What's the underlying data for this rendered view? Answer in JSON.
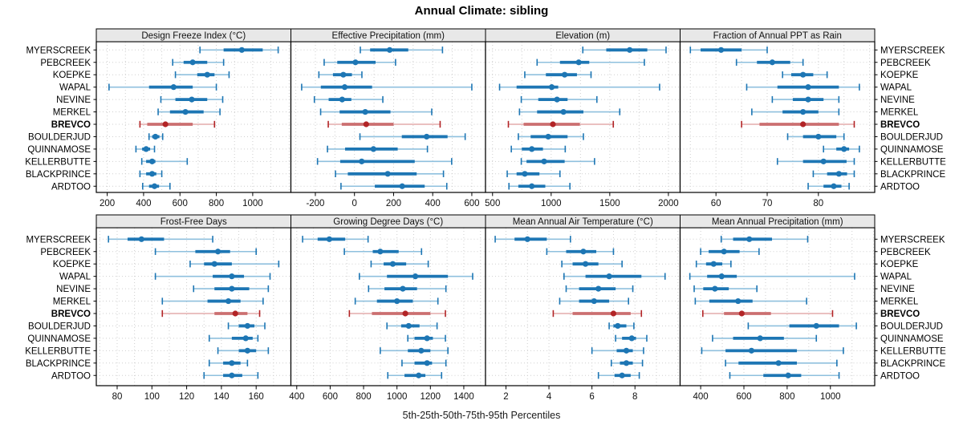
{
  "title": "Annual Climate: sibling",
  "caption": "5th-25th-50th-75th-95th Percentiles",
  "sites": [
    "MYERSCREEK",
    "PEBCREEK",
    "KOEPKE",
    "WAPAL",
    "NEVINE",
    "MERKEL",
    "BREVCO",
    "BOULDERJUD",
    "QUINNAMOSE",
    "KELLERBUTTE",
    "BLACKPRINCE",
    "ARDTOO"
  ],
  "highlight_site": "BREVCO",
  "colors": {
    "blue": "#1d76b4",
    "blue_light": "#8fc0de",
    "red": "#b22426",
    "red_box": "#cb6f70",
    "red_light": "#e3abac",
    "grid": "#cfcfcf",
    "strip_bg": "#e8e8e8",
    "border": "#000000"
  },
  "chart_data": {
    "type": "dotplot",
    "percentile_labels": [
      "5th",
      "25th",
      "50th",
      "75th",
      "95th"
    ],
    "note": "each row per site: [p5,p25,p50,p75,p95], site order as in sites[]",
    "panels": [
      {
        "title": "Design Freeze Index (°C)",
        "row": 0,
        "col": 0,
        "xlim": [
          140,
          1210
        ],
        "ticks": [
          200,
          400,
          600,
          800,
          1000
        ],
        "values": [
          [
            710,
            840,
            940,
            1055,
            1140
          ],
          [
            560,
            620,
            670,
            750,
            840
          ],
          [
            575,
            695,
            750,
            790,
            870
          ],
          [
            210,
            430,
            565,
            670,
            800
          ],
          [
            495,
            575,
            665,
            750,
            835
          ],
          [
            480,
            545,
            630,
            730,
            820
          ],
          [
            380,
            420,
            520,
            670,
            790
          ],
          [
            430,
            447,
            465,
            487,
            505
          ],
          [
            358,
            392,
            414,
            436,
            460
          ],
          [
            390,
            414,
            447,
            465,
            640
          ],
          [
            380,
            414,
            447,
            470,
            500
          ],
          [
            395,
            430,
            460,
            485,
            545
          ]
        ]
      },
      {
        "title": "Effective Precipitation (mm)",
        "row": 0,
        "col": 1,
        "xlim": [
          -325,
          670
        ],
        "ticks": [
          -200,
          0,
          200,
          400,
          600
        ],
        "values": [
          [
            30,
            80,
            180,
            275,
            450
          ],
          [
            -155,
            -88,
            5,
            108,
            210
          ],
          [
            -182,
            -110,
            -57,
            -13,
            38
          ],
          [
            -270,
            -172,
            -50,
            90,
            600
          ],
          [
            -205,
            -132,
            -63,
            -16,
            145
          ],
          [
            -173,
            -76,
            55,
            184,
            395
          ],
          [
            -134,
            -65,
            60,
            200,
            438
          ],
          [
            28,
            242,
            369,
            476,
            566
          ],
          [
            -138,
            -48,
            97,
            221,
            373
          ],
          [
            -189,
            -73,
            37,
            308,
            497
          ],
          [
            -97,
            -34,
            170,
            318,
            455
          ],
          [
            -69,
            104,
            244,
            359,
            472
          ]
        ]
      },
      {
        "title": "Elevation (m)",
        "row": 0,
        "col": 2,
        "xlim": [
          440,
          2100
        ],
        "ticks": [
          500,
          1000,
          1500,
          2000
        ],
        "values": [
          [
            1270,
            1470,
            1670,
            1820,
            1980
          ],
          [
            880,
            1075,
            1235,
            1325,
            1795
          ],
          [
            775,
            955,
            1115,
            1220,
            1340
          ],
          [
            560,
            705,
            1005,
            1060,
            1925
          ],
          [
            745,
            890,
            1050,
            1140,
            1390
          ],
          [
            730,
            880,
            1105,
            1275,
            1585
          ],
          [
            635,
            765,
            1015,
            1245,
            1530
          ],
          [
            720,
            825,
            975,
            1140,
            1275
          ],
          [
            660,
            750,
            835,
            930,
            1120
          ],
          [
            745,
            790,
            940,
            1115,
            1370
          ],
          [
            625,
            705,
            775,
            900,
            1075
          ],
          [
            640,
            720,
            835,
            950,
            1160
          ]
        ]
      },
      {
        "title": "Fraction of Annual PPT as Rain",
        "row": 0,
        "col": 3,
        "xlim": [
          53,
          91
        ],
        "ticks": [
          60,
          70,
          80
        ],
        "values": [
          [
            55,
            57,
            61,
            65,
            70
          ],
          [
            64,
            68,
            71,
            74.5,
            77
          ],
          [
            73,
            74.7,
            77,
            79,
            81.7
          ],
          [
            66,
            72,
            78,
            84,
            88
          ],
          [
            71,
            75,
            78,
            81,
            84
          ],
          [
            67,
            73,
            77,
            80,
            84
          ],
          [
            65,
            68.5,
            77,
            84,
            87
          ],
          [
            74,
            77,
            80,
            83.5,
            85
          ],
          [
            81,
            83.5,
            85,
            86,
            88
          ],
          [
            72,
            77,
            81,
            85.5,
            87
          ],
          [
            79,
            81.7,
            84,
            85.6,
            87
          ],
          [
            78,
            81,
            83,
            84.5,
            86
          ]
        ]
      },
      {
        "title": "Frost-Free Days",
        "row": 1,
        "col": 0,
        "xlim": [
          68,
          180
        ],
        "ticks": [
          80,
          100,
          120,
          140,
          160
        ],
        "values": [
          [
            75,
            86,
            94,
            107,
            135
          ],
          [
            102,
            125,
            138,
            145,
            160
          ],
          [
            122,
            130,
            136,
            146,
            173
          ],
          [
            102,
            135,
            146,
            153,
            168
          ],
          [
            124,
            136,
            146,
            156,
            167
          ],
          [
            106,
            132,
            144,
            151,
            164
          ],
          [
            106,
            136,
            148,
            155,
            162
          ],
          [
            144,
            150,
            155,
            159,
            165
          ],
          [
            133,
            146,
            154,
            158,
            161
          ],
          [
            138,
            150,
            155,
            160,
            167
          ],
          [
            133,
            141,
            146,
            151,
            155
          ],
          [
            130,
            141,
            146,
            152,
            161
          ]
        ]
      },
      {
        "title": "Growing Degree Days (°C)",
        "row": 1,
        "col": 1,
        "xlim": [
          365,
          1530
        ],
        "ticks": [
          400,
          600,
          800,
          1000,
          1200,
          1400
        ],
        "values": [
          [
            435,
            525,
            595,
            690,
            827
          ],
          [
            685,
            855,
            900,
            1010,
            1147
          ],
          [
            845,
            920,
            975,
            1055,
            1187
          ],
          [
            775,
            940,
            1110,
            1305,
            1453
          ],
          [
            830,
            925,
            1035,
            1120,
            1293
          ],
          [
            750,
            880,
            1000,
            1095,
            1245
          ],
          [
            715,
            850,
            1050,
            1200,
            1290
          ],
          [
            940,
            1025,
            1070,
            1135,
            1240
          ],
          [
            1065,
            1105,
            1180,
            1215,
            1290
          ],
          [
            900,
            1065,
            1145,
            1200,
            1305
          ],
          [
            1030,
            1105,
            1180,
            1210,
            1293
          ],
          [
            945,
            1045,
            1130,
            1170,
            1267
          ]
        ]
      },
      {
        "title": "Mean Annual Air Temperature (°C)",
        "row": 1,
        "col": 2,
        "xlim": [
          1.05,
          10.1
        ],
        "ticks": [
          2,
          4,
          6,
          8
        ],
        "values": [
          [
            1.5,
            2.4,
            3.0,
            3.9,
            5.0
          ],
          [
            3.9,
            4.8,
            5.6,
            6.2,
            7.0
          ],
          [
            4.6,
            5.1,
            5.7,
            6.3,
            7.4
          ],
          [
            4.7,
            5.7,
            6.8,
            8.3,
            9.4
          ],
          [
            4.8,
            5.4,
            6.3,
            7.1,
            7.9
          ],
          [
            4.5,
            5.4,
            6.1,
            6.8,
            7.7
          ],
          [
            4.2,
            5.1,
            7.0,
            7.8,
            8.3
          ],
          [
            6.8,
            7.0,
            7.2,
            7.6,
            7.95
          ],
          [
            7.1,
            7.4,
            7.85,
            8.05,
            8.55
          ],
          [
            6.0,
            7.15,
            7.6,
            7.9,
            8.4
          ],
          [
            6.9,
            7.3,
            7.6,
            7.9,
            8.35
          ],
          [
            6.3,
            7.05,
            7.4,
            7.8,
            8.2
          ]
        ]
      },
      {
        "title": "Mean Annual Precipitation (mm)",
        "row": 1,
        "col": 3,
        "xlim": [
          305,
          1205
        ],
        "ticks": [
          400,
          600,
          800,
          1000
        ],
        "values": [
          [
            495,
            550,
            625,
            730,
            895
          ],
          [
            400,
            437,
            508,
            580,
            670
          ],
          [
            380,
            425,
            460,
            500,
            540
          ],
          [
            350,
            430,
            497,
            567,
            1112
          ],
          [
            370,
            412,
            466,
            530,
            660
          ],
          [
            375,
            440,
            573,
            640,
            890
          ],
          [
            410,
            508,
            590,
            725,
            1010
          ],
          [
            620,
            810,
            935,
            1040,
            1120
          ],
          [
            455,
            550,
            675,
            785,
            935
          ],
          [
            405,
            515,
            635,
            845,
            1060
          ],
          [
            515,
            575,
            760,
            845,
            1030
          ],
          [
            535,
            690,
            805,
            865,
            1040
          ]
        ]
      }
    ]
  }
}
